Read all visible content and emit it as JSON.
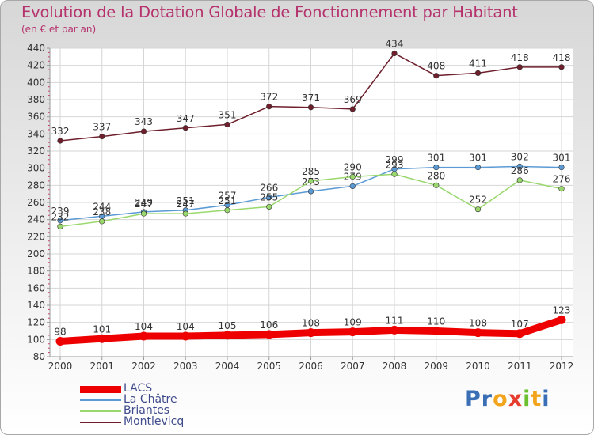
{
  "header": {
    "title": "Evolution de la Dotation Globale de Fonctionnement par Habitant",
    "subtitle": "(en € et par an)"
  },
  "logo": {
    "text": "Proxiti"
  },
  "chart_data": {
    "type": "line",
    "title": "Evolution de la Dotation Globale de Fonctionnement par Habitant",
    "subtitle": "(en € et par an)",
    "x": [
      "2000",
      "2001",
      "2002",
      "2003",
      "2004",
      "2005",
      "2006",
      "2007",
      "2008",
      "2009",
      "2010",
      "2011",
      "2012"
    ],
    "ylim": [
      80,
      440
    ],
    "yticks": [
      80,
      100,
      120,
      140,
      160,
      180,
      200,
      220,
      240,
      260,
      280,
      300,
      320,
      340,
      360,
      380,
      400,
      420,
      440
    ],
    "grid": true,
    "legend": "bottom-left",
    "series": [
      {
        "name": "LACS",
        "color": "#ee0000",
        "values": [
          98,
          101,
          104,
          104,
          105,
          106,
          108,
          109,
          111,
          110,
          108,
          107,
          123
        ]
      },
      {
        "name": "La Châtre",
        "color": "#5b9bd5",
        "values": [
          239,
          244,
          249,
          251,
          257,
          266,
          273,
          279,
          299,
          301,
          301,
          302,
          301
        ]
      },
      {
        "name": "Briantes",
        "color": "#9ad86e",
        "values": [
          232,
          238,
          247,
          247,
          251,
          255,
          285,
          290,
          293,
          280,
          252,
          286,
          276
        ]
      },
      {
        "name": "Montlevicq",
        "color": "#6e1f2b",
        "values": [
          332,
          337,
          343,
          347,
          351,
          372,
          371,
          369,
          434,
          408,
          411,
          418,
          418
        ]
      }
    ]
  }
}
